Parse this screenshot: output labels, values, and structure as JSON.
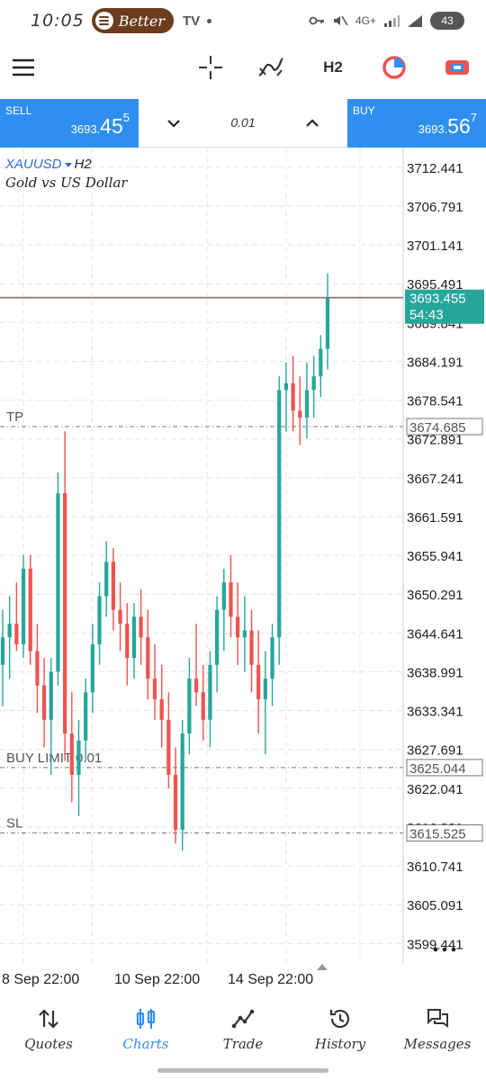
{
  "status_bar": {
    "time": "10:05",
    "now_playing": "Better",
    "network": "4G+",
    "battery": "43"
  },
  "toolbar": {
    "timeframe": "H2",
    "icons": [
      "menu-icon",
      "crosshair-icon",
      "indicators-icon",
      "timeframe-button",
      "one-click-trading-icon",
      "chart-type-icon"
    ]
  },
  "trade_panel": {
    "sell_label": "SELL",
    "sell_price_prefix": "3693.",
    "sell_price_big": "45",
    "sell_price_sup": "5",
    "buy_label": "BUY",
    "buy_price_prefix": "3693.",
    "buy_price_big": "56",
    "buy_price_sup": "7",
    "volume": "0.01"
  },
  "chart_header": {
    "symbol": "XAUUSD",
    "timeframe": "H2",
    "description": "Gold vs US Dollar"
  },
  "chart_data": {
    "type": "candlestick",
    "y_ticks": [
      "3712.441",
      "3706.791",
      "3701.141",
      "3695.491",
      "3689.841",
      "3684.191",
      "3678.541",
      "3672.891",
      "3667.241",
      "3661.591",
      "3655.941",
      "3650.291",
      "3644.641",
      "3638.991",
      "3633.341",
      "3627.691",
      "3622.041",
      "3616.391",
      "3610.741",
      "3605.091",
      "3599.441"
    ],
    "ylim": [
      3596.6,
      3715.3
    ],
    "x_ticks": [
      "8 Sep 22:00",
      "10 Sep 22:00",
      "14 Sep 22:00"
    ],
    "current_price": "3693.455",
    "countdown": "54:43",
    "levels": [
      {
        "label": "TP",
        "value": "3674.685",
        "price": 3674.685
      },
      {
        "label": "BUY LIMIT 0.01",
        "value": "3625.044",
        "price": 3625.044
      },
      {
        "label": "SL",
        "value": "3615.525",
        "price": 3615.525
      }
    ],
    "grid": true,
    "bull_color": "#26a69a",
    "bear_color": "#ef5350",
    "candles": [
      [
        3640,
        3648,
        3634,
        3644
      ],
      [
        3644,
        3650,
        3638,
        3646
      ],
      [
        3646,
        3652,
        3642,
        3643
      ],
      [
        3643,
        3656,
        3641,
        3654
      ],
      [
        3654,
        3656,
        3640,
        3642
      ],
      [
        3642,
        3646,
        3633,
        3637
      ],
      [
        3637,
        3641,
        3628,
        3632
      ],
      [
        3632,
        3641,
        3624,
        3639
      ],
      [
        3639,
        3668,
        3637,
        3665
      ],
      [
        3665,
        3674,
        3626,
        3630
      ],
      [
        3630,
        3636,
        3620,
        3624
      ],
      [
        3624,
        3632,
        3618,
        3629
      ],
      [
        3629,
        3638,
        3626,
        3636
      ],
      [
        3636,
        3646,
        3633,
        3643
      ],
      [
        3643,
        3652,
        3640,
        3650
      ],
      [
        3650,
        3658,
        3647,
        3655
      ],
      [
        3655,
        3657,
        3645,
        3648
      ],
      [
        3648,
        3652,
        3642,
        3646
      ],
      [
        3646,
        3649,
        3637,
        3641
      ],
      [
        3641,
        3649,
        3638,
        3647
      ],
      [
        3647,
        3651,
        3640,
        3644
      ],
      [
        3644,
        3648,
        3635,
        3638
      ],
      [
        3638,
        3643,
        3632,
        3635
      ],
      [
        3635,
        3640,
        3628,
        3632
      ],
      [
        3632,
        3636,
        3622,
        3624
      ],
      [
        3624,
        3628,
        3614,
        3616
      ],
      [
        3616,
        3632,
        3613,
        3630
      ],
      [
        3630,
        3641,
        3627,
        3638
      ],
      [
        3638,
        3646,
        3634,
        3636
      ],
      [
        3636,
        3640,
        3629,
        3632
      ],
      [
        3632,
        3642,
        3628,
        3640
      ],
      [
        3640,
        3650,
        3636,
        3648
      ],
      [
        3648,
        3654,
        3642,
        3652
      ],
      [
        3652,
        3656,
        3644,
        3647
      ],
      [
        3647,
        3652,
        3640,
        3644
      ],
      [
        3644,
        3650,
        3639,
        3645
      ],
      [
        3645,
        3648,
        3636,
        3640
      ],
      [
        3640,
        3645,
        3630,
        3635
      ],
      [
        3635,
        3642,
        3627,
        3638
      ],
      [
        3638,
        3646,
        3634,
        3644
      ],
      [
        3644,
        3682,
        3640,
        3680
      ],
      [
        3680,
        3684,
        3674,
        3681
      ],
      [
        3681,
        3685,
        3674,
        3677
      ],
      [
        3677,
        3682,
        3672,
        3676
      ],
      [
        3676,
        3684,
        3673,
        3680
      ],
      [
        3680,
        3685,
        3676,
        3682
      ],
      [
        3682,
        3688,
        3679,
        3686
      ],
      [
        3686,
        3697,
        3683,
        3693.455
      ]
    ]
  },
  "bottom_nav": {
    "items": [
      {
        "label": "Quotes",
        "icon": "quotes-icon"
      },
      {
        "label": "Charts",
        "icon": "charts-icon"
      },
      {
        "label": "Trade",
        "icon": "trade-icon"
      },
      {
        "label": "History",
        "icon": "history-icon"
      },
      {
        "label": "Messages",
        "icon": "messages-icon"
      }
    ],
    "active_index": 1
  }
}
